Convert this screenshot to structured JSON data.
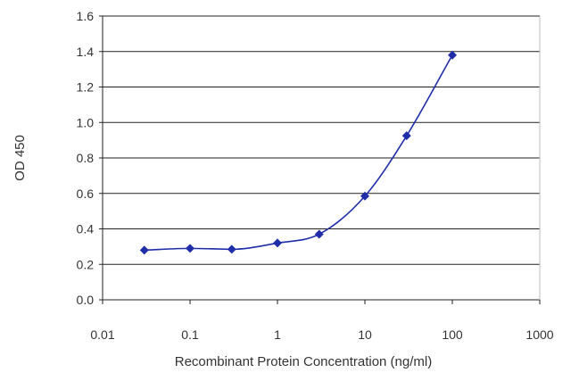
{
  "chart_data": {
    "type": "scatter",
    "title": "",
    "xlabel": "Recombinant Protein Concentration (ng/ml)",
    "ylabel": "OD 450",
    "x_scale": "log",
    "xlim": [
      0.01,
      1000
    ],
    "ylim": [
      0.0,
      1.6
    ],
    "x_tick_labels": [
      "0.01",
      "0.1",
      "1",
      "10",
      "100",
      "1000"
    ],
    "y_tick_labels": [
      "0.0",
      "0.2",
      "0.4",
      "0.6",
      "0.8",
      "1.0",
      "1.2",
      "1.4",
      "1.6"
    ],
    "grid": "horizontal",
    "legend": "none",
    "series": [
      {
        "x": [
          0.03,
          0.1,
          0.3,
          1,
          3,
          10,
          30,
          100
        ],
        "y": [
          0.28,
          0.29,
          0.285,
          0.32,
          0.37,
          0.585,
          0.925,
          1.38
        ],
        "color": "#1f2ea8",
        "marker": "diamond",
        "fit_line": "sigmoid"
      }
    ]
  }
}
